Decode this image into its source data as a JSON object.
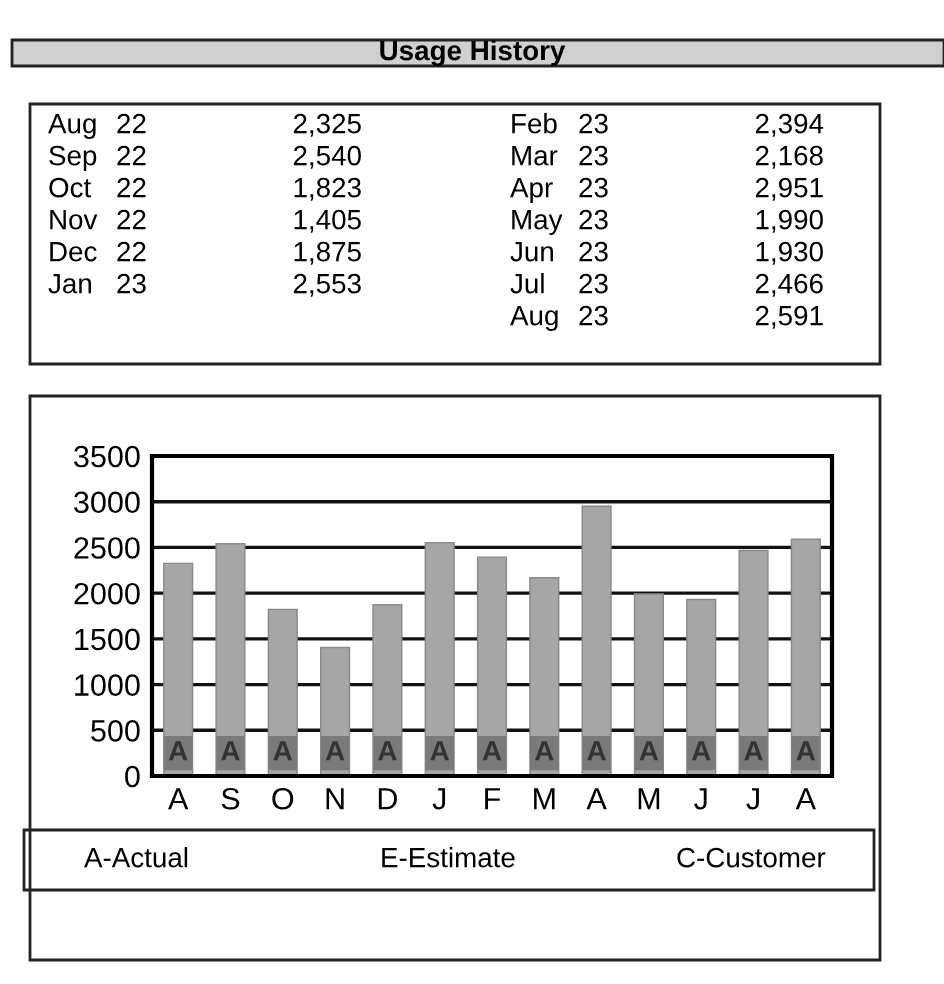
{
  "chart_data": {
    "type": "bar",
    "title": "Usage History",
    "categories": [
      "A",
      "S",
      "O",
      "N",
      "D",
      "J",
      "F",
      "M",
      "A",
      "M",
      "J",
      "J",
      "A"
    ],
    "values": [
      2325,
      2540,
      1823,
      1405,
      1875,
      2553,
      2394,
      2168,
      2951,
      1990,
      1930,
      2466,
      2591
    ],
    "color": "#a6a6a6",
    "ylim": [
      0,
      3500
    ],
    "yticks": [
      0,
      500,
      1000,
      1500,
      2000,
      2500,
      3000,
      3500
    ],
    "grid": "y",
    "annotations": [
      "Aug 22",
      "Sep 22",
      "Oct 22",
      "Nov 22",
      "Dec 22",
      "Jan 23",
      "Feb 23",
      "Mar 23",
      "Apr 23",
      "May 23",
      "Jun 23",
      "Jul 23",
      "Aug 23",
      "2,325",
      "2,540",
      "1,823",
      "1,405",
      "1,875",
      "2,553",
      "2,394",
      "2,168",
      "2,951",
      "1,990",
      "1,930",
      "2,466",
      "2,591",
      {
        "text": "A",
        "y": 250
      },
      {
        "text": "A",
        "y": 250
      },
      {
        "text": "A",
        "y": 250
      },
      {
        "text": "A",
        "y": 250
      },
      {
        "text": "A",
        "y": 250
      },
      {
        "text": "A",
        "y": 250
      },
      {
        "text": "A",
        "y": 250
      },
      {
        "text": "A",
        "y": 250
      },
      {
        "text": "A",
        "y": 250
      },
      {
        "text": "A",
        "y": 250
      },
      {
        "text": "A",
        "y": 250
      },
      {
        "text": "A",
        "y": 250
      },
      {
        "text": "A",
        "y": 250
      },
      "A-Actual",
      "E-Estimate",
      "C-Customer"
    ]
  }
}
